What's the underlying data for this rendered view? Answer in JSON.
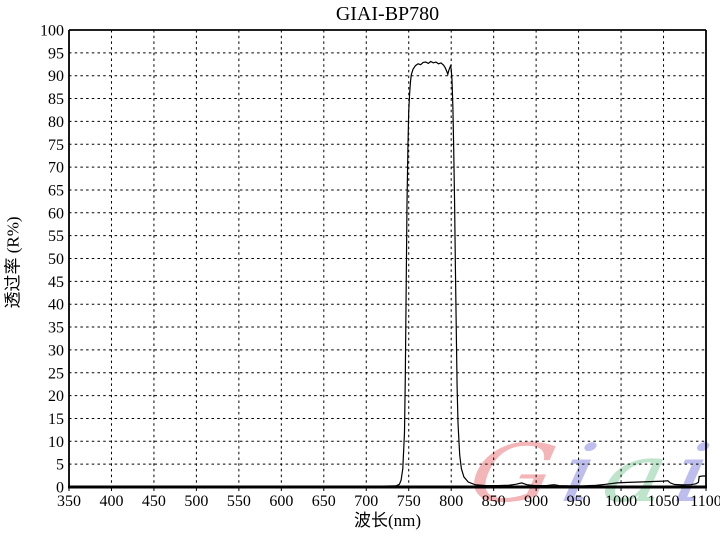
{
  "chart_data": {
    "type": "line",
    "title": "GIAI-BP780",
    "xlabel": "波长(nm)",
    "ylabel": "透过率 (R%)",
    "xlim": [
      350,
      1100
    ],
    "ylim": [
      0,
      100
    ],
    "xticks": [
      350,
      400,
      450,
      500,
      550,
      600,
      650,
      700,
      750,
      800,
      850,
      900,
      950,
      1000,
      1050,
      1100
    ],
    "yticks": [
      0,
      5,
      10,
      15,
      20,
      25,
      30,
      35,
      40,
      45,
      50,
      55,
      60,
      65,
      70,
      75,
      80,
      85,
      90,
      95,
      100
    ],
    "grid": "dashed",
    "legend": "none",
    "line_color": "#000000",
    "series": [
      {
        "name": "transmission",
        "points": [
          [
            350,
            0.2
          ],
          [
            400,
            0.2
          ],
          [
            450,
            0.2
          ],
          [
            500,
            0.2
          ],
          [
            550,
            0.2
          ],
          [
            600,
            0.2
          ],
          [
            650,
            0.2
          ],
          [
            700,
            0.2
          ],
          [
            720,
            0.2
          ],
          [
            735,
            0.25
          ],
          [
            739,
            0.6
          ],
          [
            741,
            1.5
          ],
          [
            743,
            4
          ],
          [
            745,
            12
          ],
          [
            746,
            24
          ],
          [
            747,
            44
          ],
          [
            748,
            62
          ],
          [
            749,
            74
          ],
          [
            750,
            82
          ],
          [
            751,
            86
          ],
          [
            752,
            88.5
          ],
          [
            753,
            90.2
          ],
          [
            755,
            91.4
          ],
          [
            758,
            92.2
          ],
          [
            761,
            92.6
          ],
          [
            764,
            92.4
          ],
          [
            767,
            92.9
          ],
          [
            770,
            93.0
          ],
          [
            773,
            92.7
          ],
          [
            776,
            93.1
          ],
          [
            779,
            92.8
          ],
          [
            782,
            93.0
          ],
          [
            785,
            92.6
          ],
          [
            788,
            92.8
          ],
          [
            791,
            92.3
          ],
          [
            793,
            91.7
          ],
          [
            795,
            90.8
          ],
          [
            796,
            90.3
          ],
          [
            797,
            91.1
          ],
          [
            799,
            92.1
          ],
          [
            800,
            91.5
          ],
          [
            801,
            89
          ],
          [
            802,
            83
          ],
          [
            803,
            74
          ],
          [
            804,
            62
          ],
          [
            805,
            48
          ],
          [
            806,
            34
          ],
          [
            807,
            22
          ],
          [
            808,
            14
          ],
          [
            810,
            7
          ],
          [
            812,
            4
          ],
          [
            815,
            2.2
          ],
          [
            820,
            1.1
          ],
          [
            828,
            0.5
          ],
          [
            840,
            0.3
          ],
          [
            855,
            0.3
          ],
          [
            868,
            0.4
          ],
          [
            876,
            0.6
          ],
          [
            883,
            0.9
          ],
          [
            889,
            0.5
          ],
          [
            898,
            0.3
          ],
          [
            912,
            0.3
          ],
          [
            921,
            0.5
          ],
          [
            927,
            0.3
          ],
          [
            940,
            0.25
          ],
          [
            955,
            0.25
          ],
          [
            970,
            0.35
          ],
          [
            982,
            0.6
          ],
          [
            995,
            0.9
          ],
          [
            1008,
            1.0
          ],
          [
            1022,
            1.1
          ],
          [
            1038,
            1.2
          ],
          [
            1050,
            1.3
          ],
          [
            1055,
            1.35
          ],
          [
            1058,
            0.9
          ],
          [
            1063,
            0.55
          ],
          [
            1072,
            0.45
          ],
          [
            1082,
            0.5
          ],
          [
            1088,
            0.7
          ],
          [
            1091,
            1.0
          ],
          [
            1092,
            2.3
          ],
          [
            1096,
            2.4
          ],
          [
            1100,
            2.4
          ]
        ]
      }
    ]
  },
  "watermark": {
    "text": "Giai",
    "letters": [
      {
        "char": "G",
        "color": "#f2a9ab"
      },
      {
        "char": "i",
        "color": "#b3b3ec"
      },
      {
        "char": "a",
        "color": "#b3e0c3"
      },
      {
        "char": "i",
        "color": "#b3b3ec"
      }
    ]
  },
  "colors": {
    "curve": "#000000",
    "grid": "#000000",
    "axis": "#000000",
    "background": "#ffffff"
  }
}
